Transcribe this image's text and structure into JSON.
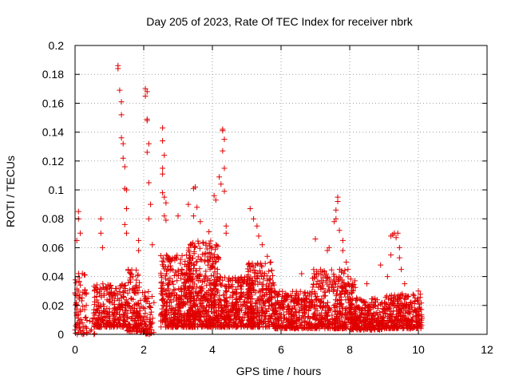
{
  "chart_data": {
    "type": "scatter",
    "title": "Day 205 of 2023, Rate Of TEC Index for receiver nbrk",
    "xlabel": "GPS time / hours",
    "ylabel": "ROTI / TECUs",
    "xlim": [
      0,
      12
    ],
    "ylim": [
      0,
      0.2
    ],
    "xticks": [
      "0",
      "2",
      "4",
      "6",
      "8",
      "10",
      "12"
    ],
    "yticks": [
      "0",
      "0.02",
      "0.04",
      "0.06",
      "0.08",
      "0.1",
      "0.12",
      "0.14",
      "0.16",
      "0.18",
      "0.2"
    ],
    "grid": true,
    "marker": "+",
    "color": "#e00000",
    "series": [
      {
        "name": "ROTI",
        "x_range": [
          0.0,
          10.1
        ],
        "notable_points": [
          {
            "x": 0.05,
            "y": 0.065
          },
          {
            "x": 0.1,
            "y": 0.085
          },
          {
            "x": 0.1,
            "y": 0.08
          },
          {
            "x": 0.15,
            "y": 0.07
          },
          {
            "x": 0.75,
            "y": 0.08
          },
          {
            "x": 0.75,
            "y": 0.07
          },
          {
            "x": 0.8,
            "y": 0.06
          },
          {
            "x": 1.25,
            "y": 0.186
          },
          {
            "x": 1.25,
            "y": 0.184
          },
          {
            "x": 1.3,
            "y": 0.169
          },
          {
            "x": 1.35,
            "y": 0.161
          },
          {
            "x": 1.35,
            "y": 0.152
          },
          {
            "x": 1.35,
            "y": 0.136
          },
          {
            "x": 1.4,
            "y": 0.132
          },
          {
            "x": 1.4,
            "y": 0.122
          },
          {
            "x": 1.45,
            "y": 0.116
          },
          {
            "x": 1.45,
            "y": 0.101
          },
          {
            "x": 1.5,
            "y": 0.1
          },
          {
            "x": 1.5,
            "y": 0.087
          },
          {
            "x": 1.45,
            "y": 0.076
          },
          {
            "x": 1.5,
            "y": 0.07
          },
          {
            "x": 1.85,
            "y": 0.065
          },
          {
            "x": 1.85,
            "y": 0.058
          },
          {
            "x": 2.05,
            "y": 0.17
          },
          {
            "x": 2.1,
            "y": 0.168
          },
          {
            "x": 2.05,
            "y": 0.165
          },
          {
            "x": 2.1,
            "y": 0.149
          },
          {
            "x": 2.1,
            "y": 0.148
          },
          {
            "x": 2.15,
            "y": 0.132
          },
          {
            "x": 2.1,
            "y": 0.126
          },
          {
            "x": 2.15,
            "y": 0.105
          },
          {
            "x": 2.2,
            "y": 0.09
          },
          {
            "x": 2.15,
            "y": 0.08
          },
          {
            "x": 2.25,
            "y": 0.062
          },
          {
            "x": 2.55,
            "y": 0.143
          },
          {
            "x": 2.55,
            "y": 0.134
          },
          {
            "x": 2.6,
            "y": 0.124
          },
          {
            "x": 2.55,
            "y": 0.115
          },
          {
            "x": 2.55,
            "y": 0.111
          },
          {
            "x": 2.55,
            "y": 0.098
          },
          {
            "x": 2.6,
            "y": 0.095
          },
          {
            "x": 2.65,
            "y": 0.091
          },
          {
            "x": 2.6,
            "y": 0.082
          },
          {
            "x": 2.65,
            "y": 0.079
          },
          {
            "x": 3.0,
            "y": 0.082
          },
          {
            "x": 3.3,
            "y": 0.09
          },
          {
            "x": 3.5,
            "y": 0.102
          },
          {
            "x": 3.45,
            "y": 0.101
          },
          {
            "x": 3.55,
            "y": 0.088
          },
          {
            "x": 3.45,
            "y": 0.082
          },
          {
            "x": 3.65,
            "y": 0.078
          },
          {
            "x": 3.9,
            "y": 0.071
          },
          {
            "x": 4.05,
            "y": 0.096
          },
          {
            "x": 4.1,
            "y": 0.093
          },
          {
            "x": 4.2,
            "y": 0.109
          },
          {
            "x": 4.25,
            "y": 0.104
          },
          {
            "x": 4.3,
            "y": 0.141
          },
          {
            "x": 4.3,
            "y": 0.142
          },
          {
            "x": 4.35,
            "y": 0.135
          },
          {
            "x": 4.3,
            "y": 0.127
          },
          {
            "x": 4.35,
            "y": 0.115
          },
          {
            "x": 4.35,
            "y": 0.099
          },
          {
            "x": 4.4,
            "y": 0.075
          },
          {
            "x": 4.4,
            "y": 0.07
          },
          {
            "x": 5.1,
            "y": 0.087
          },
          {
            "x": 5.2,
            "y": 0.08
          },
          {
            "x": 5.3,
            "y": 0.075
          },
          {
            "x": 5.35,
            "y": 0.068
          },
          {
            "x": 5.45,
            "y": 0.062
          },
          {
            "x": 5.6,
            "y": 0.054
          },
          {
            "x": 5.7,
            "y": 0.05
          },
          {
            "x": 6.6,
            "y": 0.042
          },
          {
            "x": 7.0,
            "y": 0.066
          },
          {
            "x": 7.35,
            "y": 0.058
          },
          {
            "x": 7.4,
            "y": 0.06
          },
          {
            "x": 7.65,
            "y": 0.095
          },
          {
            "x": 7.65,
            "y": 0.092
          },
          {
            "x": 7.6,
            "y": 0.086
          },
          {
            "x": 7.6,
            "y": 0.08
          },
          {
            "x": 7.55,
            "y": 0.078
          },
          {
            "x": 7.7,
            "y": 0.072
          },
          {
            "x": 7.8,
            "y": 0.065
          },
          {
            "x": 7.8,
            "y": 0.058
          },
          {
            "x": 7.9,
            "y": 0.05
          },
          {
            "x": 7.95,
            "y": 0.045
          },
          {
            "x": 8.5,
            "y": 0.035
          },
          {
            "x": 8.9,
            "y": 0.048
          },
          {
            "x": 9.2,
            "y": 0.068
          },
          {
            "x": 9.25,
            "y": 0.069
          },
          {
            "x": 9.3,
            "y": 0.07
          },
          {
            "x": 9.4,
            "y": 0.07
          },
          {
            "x": 9.35,
            "y": 0.067
          },
          {
            "x": 9.45,
            "y": 0.06
          },
          {
            "x": 9.45,
            "y": 0.053
          },
          {
            "x": 9.2,
            "y": 0.055
          },
          {
            "x": 9.5,
            "y": 0.045
          },
          {
            "x": 9.1,
            "y": 0.04
          },
          {
            "x": 9.6,
            "y": 0.035
          },
          {
            "x": 10.0,
            "y": 0.03
          }
        ],
        "bands": [
          {
            "x_start": 0.0,
            "x_end": 0.35,
            "y_low": 0.0,
            "y_high": 0.045,
            "density": 70
          },
          {
            "x_start": 0.35,
            "x_end": 0.6,
            "y_low": 0.0,
            "y_high": 0.02,
            "density": 10
          },
          {
            "x_start": 0.55,
            "x_end": 1.55,
            "y_low": 0.005,
            "y_high": 0.035,
            "density": 260
          },
          {
            "x_start": 1.5,
            "x_end": 1.9,
            "y_low": 0.002,
            "y_high": 0.045,
            "density": 120
          },
          {
            "x_start": 1.9,
            "x_end": 2.3,
            "y_low": 0.0,
            "y_high": 0.03,
            "density": 80
          },
          {
            "x_start": 2.5,
            "x_end": 3.4,
            "y_low": 0.005,
            "y_high": 0.055,
            "density": 380
          },
          {
            "x_start": 3.3,
            "x_end": 4.2,
            "y_low": 0.005,
            "y_high": 0.065,
            "density": 420
          },
          {
            "x_start": 4.2,
            "x_end": 5.2,
            "y_low": 0.005,
            "y_high": 0.04,
            "density": 330
          },
          {
            "x_start": 5.0,
            "x_end": 5.8,
            "y_low": 0.005,
            "y_high": 0.05,
            "density": 250
          },
          {
            "x_start": 5.8,
            "x_end": 6.9,
            "y_low": 0.004,
            "y_high": 0.03,
            "density": 300
          },
          {
            "x_start": 6.9,
            "x_end": 7.9,
            "y_low": 0.004,
            "y_high": 0.045,
            "density": 320
          },
          {
            "x_start": 7.9,
            "x_end": 8.2,
            "y_low": 0.01,
            "y_high": 0.04,
            "density": 60
          },
          {
            "x_start": 8.0,
            "x_end": 9.0,
            "y_low": 0.003,
            "y_high": 0.025,
            "density": 280
          },
          {
            "x_start": 9.0,
            "x_end": 10.1,
            "y_low": 0.004,
            "y_high": 0.028,
            "density": 300
          }
        ]
      }
    ]
  }
}
